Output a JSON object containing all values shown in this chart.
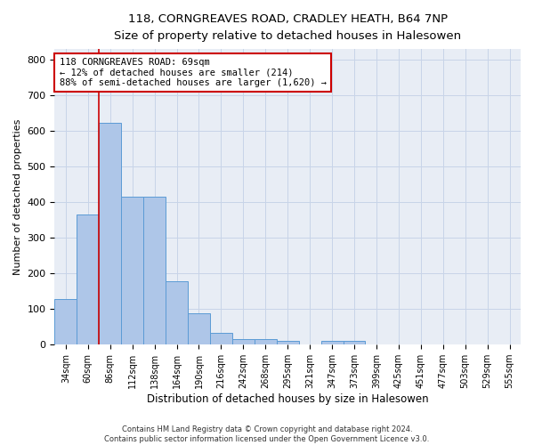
{
  "title": "118, CORNGREAVES ROAD, CRADLEY HEATH, B64 7NP",
  "subtitle": "Size of property relative to detached houses in Halesowen",
  "xlabel": "Distribution of detached houses by size in Halesowen",
  "ylabel": "Number of detached properties",
  "categories": [
    "34sqm",
    "60sqm",
    "86sqm",
    "112sqm",
    "138sqm",
    "164sqm",
    "190sqm",
    "216sqm",
    "242sqm",
    "268sqm",
    "295sqm",
    "321sqm",
    "347sqm",
    "373sqm",
    "399sqm",
    "425sqm",
    "451sqm",
    "477sqm",
    "503sqm",
    "529sqm",
    "555sqm"
  ],
  "values": [
    128,
    365,
    622,
    415,
    415,
    178,
    88,
    33,
    15,
    15,
    10,
    0,
    10,
    10,
    0,
    0,
    0,
    0,
    0,
    0,
    0
  ],
  "bar_color": "#aec6e8",
  "bar_edge_color": "#5b9bd5",
  "grid_color": "#c8d4e8",
  "background_color": "#e8edf5",
  "vline_x": 1.5,
  "vline_color": "#cc0000",
  "annotation_line1": "118 CORNGREAVES ROAD: 69sqm",
  "annotation_line2": "← 12% of detached houses are smaller (214)",
  "annotation_line3": "88% of semi-detached houses are larger (1,620) →",
  "annotation_box_color": "#ffffff",
  "annotation_box_edge": "#cc0000",
  "ylim": [
    0,
    830
  ],
  "yticks": [
    0,
    100,
    200,
    300,
    400,
    500,
    600,
    700,
    800
  ],
  "footer": "Contains HM Land Registry data © Crown copyright and database right 2024.\nContains public sector information licensed under the Open Government Licence v3.0."
}
